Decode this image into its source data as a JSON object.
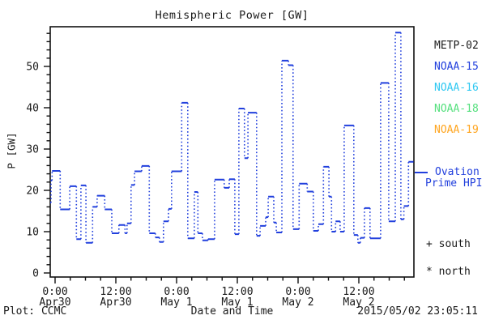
{
  "window": {
    "kind": "science-plot-screenshot"
  },
  "title": "Hemispheric Power [GW]",
  "footer": {
    "credit": "Plot: CCMC",
    "timestamp": "2015/05/02 23:05:11"
  },
  "legend": {
    "satellites": [
      {
        "name": "METP-02",
        "color": "#1a1a1a"
      },
      {
        "name": "NOAA-15",
        "color": "#2240dd"
      },
      {
        "name": "NOAA-16",
        "color": "#2fc8f2"
      },
      {
        "name": "NOAA-18",
        "color": "#55e07e"
      },
      {
        "name": "NOAA-19",
        "color": "#ffa51f"
      }
    ],
    "model_line": {
      "label_line1": "Ovation",
      "label_line2": "Prime HPI",
      "color": "#2240dd"
    },
    "markers": [
      {
        "symbol": "+",
        "label": "south"
      },
      {
        "symbol": "*",
        "label": "north"
      }
    ]
  },
  "chart_data": {
    "type": "line",
    "subtype": "step",
    "title": "Hemispheric Power [GW]",
    "xlabel": "Date and Time",
    "ylabel": "P [GW]",
    "series_name": "Ovation Prime HPI",
    "line_color": "#2240dd",
    "line_style": "solid horizontals, dotted vertical connectors",
    "grid": false,
    "ylim": [
      0,
      59.5
    ],
    "y_major_ticks": [
      0,
      10,
      20,
      30,
      40,
      50
    ],
    "y_minor_step": 2,
    "x_unit": "hours since Apr 30 0:00",
    "xlim_hours": [
      -0.96,
      70.8
    ],
    "x_major_ticks": [
      {
        "hour": 0,
        "time": "0:00",
        "date": "Apr30"
      },
      {
        "hour": 12,
        "time": "12:00",
        "date": "Apr30"
      },
      {
        "hour": 24,
        "time": "0:00",
        "date": "May 1"
      },
      {
        "hour": 36,
        "time": "12:00",
        "date": "May 1"
      },
      {
        "hour": 48,
        "time": "0:00",
        "date": "May 2"
      },
      {
        "hour": 60,
        "time": "12:00",
        "date": "May 2"
      }
    ],
    "x_minor_step_hours": 3,
    "steps_hour_gw": [
      [
        -0.96,
        17.0
      ],
      [
        -0.8,
        22.4
      ],
      [
        -0.6,
        24.7
      ],
      [
        1.0,
        15.4
      ],
      [
        2.9,
        21.0
      ],
      [
        4.2,
        8.2
      ],
      [
        5.1,
        21.2
      ],
      [
        6.1,
        7.3
      ],
      [
        7.4,
        16.0
      ],
      [
        8.3,
        18.7
      ],
      [
        9.8,
        15.4
      ],
      [
        11.2,
        9.6
      ],
      [
        12.6,
        11.6
      ],
      [
        13.8,
        9.6
      ],
      [
        14.2,
        12.0
      ],
      [
        15.0,
        21.3
      ],
      [
        15.7,
        24.6
      ],
      [
        17.1,
        25.9
      ],
      [
        18.6,
        9.6
      ],
      [
        19.8,
        8.6
      ],
      [
        20.6,
        7.5
      ],
      [
        21.4,
        12.5
      ],
      [
        22.4,
        15.5
      ],
      [
        23.0,
        24.6
      ],
      [
        25.0,
        41.2
      ],
      [
        26.2,
        8.4
      ],
      [
        27.5,
        19.6
      ],
      [
        28.2,
        9.6
      ],
      [
        29.1,
        7.9
      ],
      [
        30.2,
        8.2
      ],
      [
        31.5,
        22.6
      ],
      [
        33.4,
        20.6
      ],
      [
        34.4,
        22.7
      ],
      [
        35.5,
        9.4
      ],
      [
        36.3,
        39.8
      ],
      [
        37.4,
        27.8
      ],
      [
        38.1,
        38.8
      ],
      [
        39.8,
        9.0
      ],
      [
        40.5,
        11.4
      ],
      [
        41.6,
        13.5
      ],
      [
        42.1,
        18.5
      ],
      [
        43.2,
        12.2
      ],
      [
        43.7,
        9.8
      ],
      [
        44.8,
        51.4
      ],
      [
        46.1,
        50.3
      ],
      [
        47.0,
        10.6
      ],
      [
        48.2,
        21.6
      ],
      [
        49.8,
        19.7
      ],
      [
        51.0,
        10.2
      ],
      [
        52.0,
        11.8
      ],
      [
        53.0,
        25.7
      ],
      [
        54.1,
        18.5
      ],
      [
        54.6,
        10.0
      ],
      [
        55.4,
        12.5
      ],
      [
        56.3,
        10.0
      ],
      [
        57.1,
        35.7
      ],
      [
        59.0,
        9.2
      ],
      [
        59.8,
        7.3
      ],
      [
        60.3,
        8.5
      ],
      [
        61.1,
        15.7
      ],
      [
        62.2,
        8.4
      ],
      [
        64.3,
        46.0
      ],
      [
        65.9,
        12.5
      ],
      [
        67.2,
        58.2
      ],
      [
        68.3,
        13.0
      ],
      [
        68.9,
        16.2
      ],
      [
        69.8,
        26.9
      ]
    ],
    "end_hour": 70.8
  }
}
